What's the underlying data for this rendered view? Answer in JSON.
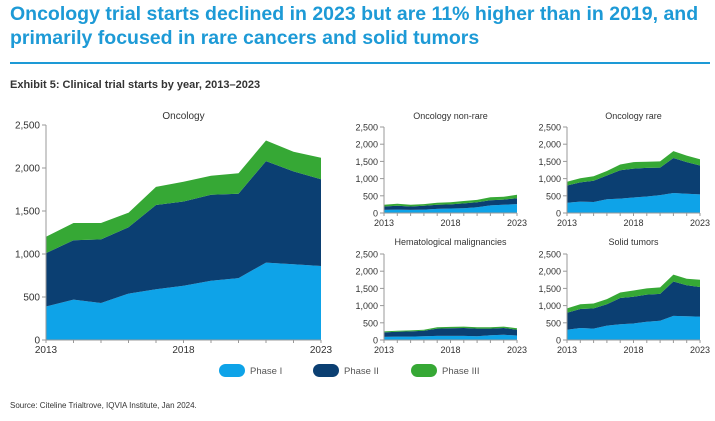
{
  "headline": "Oncology trial starts declined in 2023 but are 11% higher than in 2019, and primarily focused in rare cancers and solid tumors",
  "exhibit_title": "Exhibit 5: Clinical trial starts by year, 2013–2023",
  "source": "Source: Citeline Trialtrove, IQVIA Institute, Jan 2024.",
  "colors": {
    "phase1": "#0ea3e8",
    "phase2": "#0b3f72",
    "phase3": "#36a835",
    "axis": "#999999",
    "text": "#333333"
  },
  "legend": [
    {
      "name": "Phase I",
      "color": "#0ea3e8"
    },
    {
      "name": "Phase II",
      "color": "#0b3f72"
    },
    {
      "name": "Phase III",
      "color": "#36a835"
    }
  ],
  "chart_data": [
    {
      "type": "area",
      "stacked": true,
      "title": "Oncology",
      "x": [
        2013,
        2014,
        2015,
        2016,
        2017,
        2018,
        2019,
        2020,
        2021,
        2022,
        2023
      ],
      "x_ticks": [
        "2013",
        "2018",
        "2023"
      ],
      "ylim": [
        0,
        2500
      ],
      "y_ticks": [
        "0",
        "500",
        "1,000",
        "1,500",
        "2,000",
        "2,500"
      ],
      "series": [
        {
          "name": "Phase I",
          "values": [
            390,
            470,
            430,
            540,
            590,
            630,
            690,
            720,
            900,
            880,
            860
          ]
        },
        {
          "name": "Phase II",
          "values": [
            620,
            690,
            740,
            770,
            980,
            980,
            1000,
            980,
            1180,
            1080,
            1010
          ]
        },
        {
          "name": "Phase III",
          "values": [
            190,
            200,
            190,
            170,
            210,
            230,
            220,
            240,
            240,
            230,
            250
          ]
        }
      ]
    },
    {
      "type": "area",
      "stacked": true,
      "title": "Oncology non-rare",
      "x": [
        2013,
        2014,
        2015,
        2016,
        2017,
        2018,
        2019,
        2020,
        2021,
        2022,
        2023
      ],
      "x_ticks": [
        "2013",
        "2018",
        "2023"
      ],
      "ylim": [
        0,
        2500
      ],
      "y_ticks": [
        "0",
        "500",
        "1,000",
        "1,500",
        "2,000",
        "2,500"
      ],
      "series": [
        {
          "name": "Phase I",
          "values": [
            90,
            100,
            90,
            100,
            120,
            130,
            140,
            170,
            220,
            240,
            260
          ]
        },
        {
          "name": "Phase II",
          "values": [
            100,
            110,
            100,
            110,
            120,
            120,
            140,
            140,
            150,
            150,
            170
          ]
        },
        {
          "name": "Phase III",
          "values": [
            50,
            60,
            50,
            50,
            60,
            60,
            70,
            70,
            90,
            80,
            100
          ]
        }
      ]
    },
    {
      "type": "area",
      "stacked": true,
      "title": "Oncology rare",
      "x": [
        2013,
        2014,
        2015,
        2016,
        2017,
        2018,
        2019,
        2020,
        2021,
        2022,
        2023
      ],
      "x_ticks": [
        "2013",
        "2018",
        "2023"
      ],
      "ylim": [
        0,
        2500
      ],
      "y_ticks": [
        "0",
        "500",
        "1,000",
        "1,500",
        "2,000",
        "2,500"
      ],
      "series": [
        {
          "name": "Phase I",
          "values": [
            300,
            330,
            320,
            400,
            420,
            450,
            480,
            520,
            580,
            560,
            540
          ]
        },
        {
          "name": "Phase II",
          "values": [
            500,
            560,
            620,
            690,
            820,
            840,
            830,
            800,
            1020,
            920,
            840
          ]
        },
        {
          "name": "Phase III",
          "values": [
            110,
            120,
            130,
            130,
            170,
            190,
            180,
            180,
            200,
            190,
            180
          ]
        }
      ]
    },
    {
      "type": "area",
      "stacked": true,
      "title": "Hematological malignancies",
      "x": [
        2013,
        2014,
        2015,
        2016,
        2017,
        2018,
        2019,
        2020,
        2021,
        2022,
        2023
      ],
      "x_ticks": [
        "2013",
        "2018",
        "2023"
      ],
      "ylim": [
        0,
        2500
      ],
      "y_ticks": [
        "0",
        "500",
        "1,000",
        "1,500",
        "2,000",
        "2,500"
      ],
      "series": [
        {
          "name": "Phase I",
          "values": [
            90,
            100,
            100,
            110,
            120,
            120,
            120,
            110,
            140,
            150,
            130
          ]
        },
        {
          "name": "Phase II",
          "values": [
            130,
            140,
            150,
            160,
            210,
            220,
            230,
            220,
            190,
            200,
            170
          ]
        },
        {
          "name": "Phase III",
          "values": [
            30,
            30,
            30,
            30,
            40,
            40,
            40,
            40,
            40,
            40,
            40
          ]
        }
      ]
    },
    {
      "type": "area",
      "stacked": true,
      "title": "Solid tumors",
      "x": [
        2013,
        2014,
        2015,
        2016,
        2017,
        2018,
        2019,
        2020,
        2021,
        2022,
        2023
      ],
      "x_ticks": [
        "2013",
        "2018",
        "2023"
      ],
      "ylim": [
        0,
        2500
      ],
      "y_ticks": [
        "0",
        "500",
        "1,000",
        "1,500",
        "2,000",
        "2,500"
      ],
      "series": [
        {
          "name": "Phase I",
          "values": [
            300,
            350,
            330,
            420,
            460,
            480,
            530,
            560,
            700,
            690,
            680
          ]
        },
        {
          "name": "Phase II",
          "values": [
            490,
            550,
            590,
            620,
            760,
            780,
            790,
            780,
            1000,
            900,
            860
          ]
        },
        {
          "name": "Phase III",
          "values": [
            130,
            140,
            140,
            150,
            160,
            180,
            180,
            190,
            200,
            190,
            210
          ]
        }
      ]
    }
  ]
}
